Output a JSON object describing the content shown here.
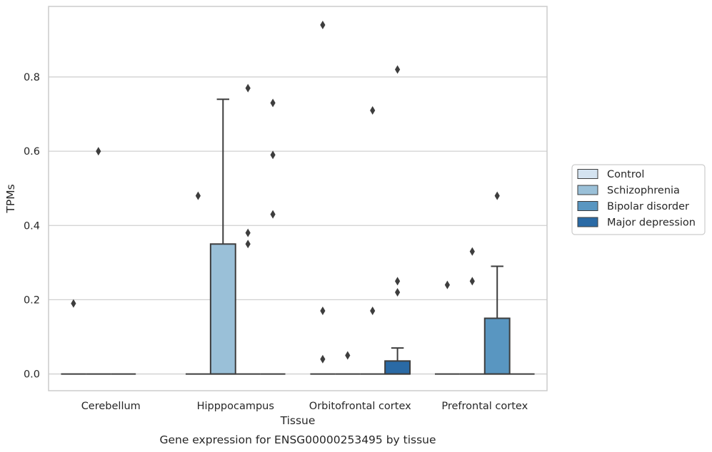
{
  "chart_data": {
    "type": "box",
    "caption": "Gene expression for ENSG00000253495 by tissue",
    "xlabel": "Tissue",
    "ylabel": "TPMs",
    "ylim": [
      -0.045,
      0.99
    ],
    "yticks": [
      0.0,
      0.2,
      0.4,
      0.6,
      0.8
    ],
    "ytick_labels": [
      "0.0",
      "0.2",
      "0.4",
      "0.6",
      "0.8"
    ],
    "grid": "horizontal",
    "legend_position": "center-right, outside plot",
    "categories": [
      "Cerebellum",
      "Hipppocampus",
      "Orbitofrontal cortex",
      "Prefrontal cortex"
    ],
    "series": [
      {
        "name": "Control",
        "color": "#d4e3f0",
        "boxes": [
          {
            "q1": 0,
            "median": 0,
            "q3": 0,
            "whislo": 0,
            "whishi": 0,
            "fliers": [
              0.19
            ]
          },
          {
            "q1": 0,
            "median": 0,
            "q3": 0,
            "whislo": 0,
            "whishi": 0,
            "fliers": [
              0.48
            ]
          },
          {
            "q1": 0,
            "median": 0,
            "q3": 0,
            "whislo": 0,
            "whishi": 0,
            "fliers": [
              0.94,
              0.17,
              0.04
            ]
          },
          {
            "q1": 0,
            "median": 0,
            "q3": 0,
            "whislo": 0,
            "whishi": 0,
            "fliers": [
              0.24
            ]
          }
        ]
      },
      {
        "name": "Schizophrenia",
        "color": "#9ac0d8",
        "boxes": [
          {
            "q1": 0,
            "median": 0,
            "q3": 0,
            "whislo": 0,
            "whishi": 0,
            "fliers": [
              0.6
            ]
          },
          {
            "q1": 0,
            "median": 0,
            "q3": 0.35,
            "whislo": 0,
            "whishi": 0.74,
            "fliers": []
          },
          {
            "q1": 0,
            "median": 0,
            "q3": 0,
            "whislo": 0,
            "whishi": 0,
            "fliers": [
              0.05
            ]
          },
          {
            "q1": 0,
            "median": 0,
            "q3": 0,
            "whislo": 0,
            "whishi": 0,
            "fliers": [
              0.25,
              0.33
            ]
          }
        ]
      },
      {
        "name": "Bipolar disorder",
        "color": "#5996c1",
        "boxes": [
          {
            "q1": 0,
            "median": 0,
            "q3": 0,
            "whislo": 0,
            "whishi": 0,
            "fliers": []
          },
          {
            "q1": 0,
            "median": 0,
            "q3": 0,
            "whislo": 0,
            "whishi": 0,
            "fliers": [
              0.77,
              0.35,
              0.38
            ]
          },
          {
            "q1": 0,
            "median": 0,
            "q3": 0,
            "whislo": 0,
            "whishi": 0,
            "fliers": [
              0.71,
              0.17
            ]
          },
          {
            "q1": 0,
            "median": 0,
            "q3": 0.15,
            "whislo": 0,
            "whishi": 0.29,
            "fliers": [
              0.48
            ]
          }
        ]
      },
      {
        "name": "Major depression",
        "color": "#2a6aa5",
        "boxes": [
          null,
          {
            "q1": 0,
            "median": 0,
            "q3": 0,
            "whislo": 0,
            "whishi": 0,
            "fliers": [
              0.73,
              0.59,
              0.43
            ]
          },
          {
            "q1": 0,
            "median": 0,
            "q3": 0.035,
            "whislo": 0,
            "whishi": 0.07,
            "fliers": [
              0.82,
              0.25,
              0.22
            ]
          },
          {
            "q1": 0,
            "median": 0,
            "q3": 0,
            "whislo": 0,
            "whishi": 0,
            "fliers": []
          }
        ]
      }
    ]
  }
}
